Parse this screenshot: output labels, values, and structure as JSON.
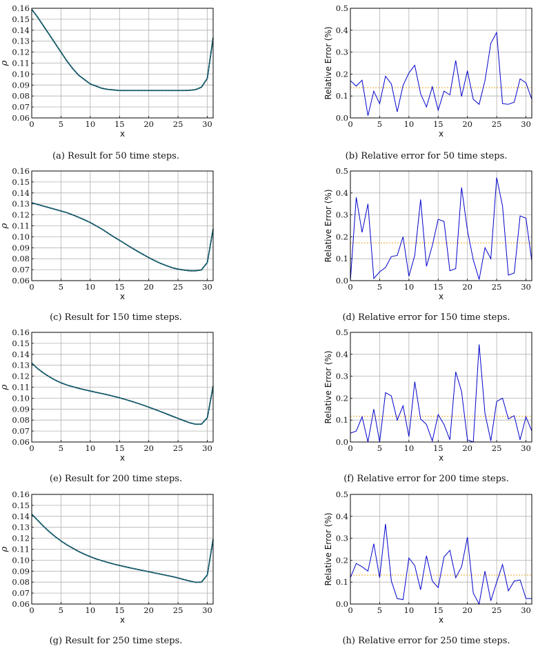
{
  "colors": {
    "accent": "#0000cc",
    "mean": "#e8a317",
    "truth": "#0a4a5a",
    "grid": "#b0b0b0"
  },
  "chart_data": [
    {
      "id": "a",
      "type": "line",
      "caption": "(a) Result for 50 time steps.",
      "xlabel": "x",
      "ylabel": "ρ",
      "xlim": [
        0,
        31
      ],
      "ylim": [
        0.06,
        0.16
      ],
      "xticks": [
        0,
        5,
        10,
        15,
        20,
        25,
        30
      ],
      "yticks": [
        "0.06",
        "0.07",
        "0.08",
        "0.09",
        "0.10",
        "0.11",
        "0.12",
        "0.13",
        "0.14",
        "0.15",
        "0.16"
      ],
      "grid": true,
      "x": [
        0,
        1,
        2,
        3,
        4,
        5,
        6,
        7,
        8,
        9,
        10,
        11,
        12,
        13,
        14,
        15,
        16,
        17,
        18,
        19,
        20,
        21,
        22,
        23,
        24,
        25,
        26,
        27,
        28,
        29,
        30,
        31
      ],
      "series": [
        {
          "values": [
            0.159,
            0.152,
            0.144,
            0.136,
            0.128,
            0.12,
            0.112,
            0.105,
            0.099,
            0.095,
            0.091,
            0.089,
            0.087,
            0.086,
            0.0855,
            0.085,
            0.085,
            0.085,
            0.085,
            0.085,
            0.085,
            0.085,
            0.085,
            0.085,
            0.085,
            0.085,
            0.085,
            0.0852,
            0.0858,
            0.088,
            0.096,
            0.133
          ]
        }
      ]
    },
    {
      "id": "b",
      "type": "line",
      "caption": "(b) Relative error for 50 time steps.",
      "xlabel": "x",
      "ylabel": "Relative Error (%)",
      "xlim": [
        0,
        31
      ],
      "ylim": [
        0,
        0.5
      ],
      "xticks": [
        0,
        5,
        10,
        15,
        20,
        25,
        30
      ],
      "yticks": [
        "0.0",
        "0.1",
        "0.2",
        "0.3",
        "0.4",
        "0.5"
      ],
      "grid": true,
      "mean": 0.138,
      "x": [
        0,
        1,
        2,
        3,
        4,
        5,
        6,
        7,
        8,
        9,
        10,
        11,
        12,
        13,
        14,
        15,
        16,
        17,
        18,
        19,
        20,
        21,
        22,
        23,
        24,
        25,
        26,
        27,
        28,
        29,
        30,
        31
      ],
      "series": [
        {
          "values": [
            0.17,
            0.145,
            0.172,
            0.01,
            0.122,
            0.065,
            0.19,
            0.155,
            0.028,
            0.148,
            0.205,
            0.24,
            0.11,
            0.05,
            0.142,
            0.035,
            0.122,
            0.105,
            0.262,
            0.098,
            0.215,
            0.085,
            0.062,
            0.17,
            0.34,
            0.39,
            0.065,
            0.062,
            0.072,
            0.178,
            0.16,
            0.085
          ]
        }
      ]
    },
    {
      "id": "c",
      "type": "line",
      "caption": "(c) Result for 150 time steps.",
      "xlabel": "x",
      "ylabel": "ρ",
      "xlim": [
        0,
        31
      ],
      "ylim": [
        0.06,
        0.16
      ],
      "xticks": [
        0,
        5,
        10,
        15,
        20,
        25,
        30
      ],
      "yticks": [
        "0.06",
        "0.07",
        "0.08",
        "0.09",
        "0.10",
        "0.11",
        "0.12",
        "0.13",
        "0.14",
        "0.15",
        "0.16"
      ],
      "grid": true,
      "x": [
        0,
        1,
        2,
        3,
        4,
        5,
        6,
        7,
        8,
        9,
        10,
        11,
        12,
        13,
        14,
        15,
        16,
        17,
        18,
        19,
        20,
        21,
        22,
        23,
        24,
        25,
        26,
        27,
        28,
        29,
        30,
        31
      ],
      "series": [
        {
          "values": [
            0.131,
            0.1295,
            0.128,
            0.1265,
            0.125,
            0.1235,
            0.122,
            0.12,
            0.1178,
            0.1155,
            0.113,
            0.11,
            0.107,
            0.1035,
            0.1,
            0.0968,
            0.0935,
            0.0902,
            0.087,
            0.084,
            0.081,
            0.0783,
            0.0758,
            0.0737,
            0.0718,
            0.0705,
            0.0697,
            0.069,
            0.069,
            0.0698,
            0.0765,
            0.107
          ]
        }
      ]
    },
    {
      "id": "d",
      "type": "line",
      "caption": "(d) Relative error for 150 time steps.",
      "xlabel": "x",
      "ylabel": "Relative Error (%)",
      "xlim": [
        0,
        31
      ],
      "ylim": [
        0,
        0.5
      ],
      "xticks": [
        0,
        5,
        10,
        15,
        20,
        25,
        30
      ],
      "yticks": [
        "0.0",
        "0.1",
        "0.2",
        "0.3",
        "0.4",
        "0.5"
      ],
      "grid": true,
      "mean": 0.172,
      "x": [
        0,
        1,
        2,
        3,
        4,
        5,
        6,
        7,
        8,
        9,
        10,
        11,
        12,
        13,
        14,
        15,
        16,
        17,
        18,
        19,
        20,
        21,
        22,
        23,
        24,
        25,
        26,
        27,
        28,
        29,
        30,
        31
      ],
      "series": [
        {
          "values": [
            0.0,
            0.38,
            0.22,
            0.35,
            0.01,
            0.04,
            0.06,
            0.11,
            0.115,
            0.2,
            0.02,
            0.115,
            0.37,
            0.065,
            0.16,
            0.28,
            0.27,
            0.045,
            0.055,
            0.425,
            0.23,
            0.095,
            0.005,
            0.15,
            0.1,
            0.47,
            0.34,
            0.025,
            0.035,
            0.295,
            0.285,
            0.09
          ]
        }
      ]
    },
    {
      "id": "e",
      "type": "line",
      "caption": "(e) Result for 200 time steps.",
      "xlabel": "x",
      "ylabel": "ρ",
      "xlim": [
        0,
        31
      ],
      "ylim": [
        0.06,
        0.16
      ],
      "xticks": [
        0,
        5,
        10,
        15,
        20,
        25,
        30
      ],
      "yticks": [
        "0.06",
        "0.07",
        "0.08",
        "0.09",
        "0.10",
        "0.11",
        "0.12",
        "0.13",
        "0.14",
        "0.15",
        "0.16"
      ],
      "grid": true,
      "x": [
        0,
        1,
        2,
        3,
        4,
        5,
        6,
        7,
        8,
        9,
        10,
        11,
        12,
        13,
        14,
        15,
        16,
        17,
        18,
        19,
        20,
        21,
        22,
        23,
        24,
        25,
        26,
        27,
        28,
        29,
        30,
        31
      ],
      "series": [
        {
          "values": [
            0.132,
            0.127,
            0.123,
            0.1195,
            0.1165,
            0.114,
            0.112,
            0.1105,
            0.109,
            0.1077,
            0.1065,
            0.1053,
            0.1042,
            0.103,
            0.1017,
            0.1003,
            0.0988,
            0.0972,
            0.0955,
            0.0937,
            0.0918,
            0.0898,
            0.0878,
            0.0857,
            0.0836,
            0.0815,
            0.0795,
            0.0775,
            0.0762,
            0.0763,
            0.082,
            0.111
          ]
        }
      ]
    },
    {
      "id": "f",
      "type": "line",
      "caption": "(f) Relative error for 200 time steps.",
      "xlabel": "x",
      "ylabel": "Relative Error (%)",
      "xlim": [
        0,
        31
      ],
      "ylim": [
        0,
        0.5
      ],
      "xticks": [
        0,
        5,
        10,
        15,
        20,
        25,
        30
      ],
      "yticks": [
        "0.0",
        "0.1",
        "0.2",
        "0.3",
        "0.4",
        "0.5"
      ],
      "grid": true,
      "mean": 0.117,
      "x": [
        0,
        1,
        2,
        3,
        4,
        5,
        6,
        7,
        8,
        9,
        10,
        11,
        12,
        13,
        14,
        15,
        16,
        17,
        18,
        19,
        20,
        21,
        22,
        23,
        24,
        25,
        26,
        27,
        28,
        29,
        30,
        31
      ],
      "series": [
        {
          "values": [
            0.04,
            0.05,
            0.115,
            0.0,
            0.15,
            0.0,
            0.225,
            0.21,
            0.1,
            0.165,
            0.025,
            0.275,
            0.105,
            0.08,
            0.005,
            0.125,
            0.08,
            0.01,
            0.32,
            0.23,
            0.01,
            0.0,
            0.445,
            0.13,
            0.005,
            0.185,
            0.2,
            0.105,
            0.12,
            0.01,
            0.115,
            0.05
          ]
        }
      ]
    },
    {
      "id": "g",
      "type": "line",
      "caption": "(g) Result for 250 time steps.",
      "xlabel": "x",
      "ylabel": "ρ",
      "xlim": [
        0,
        31
      ],
      "ylim": [
        0.06,
        0.16
      ],
      "xticks": [
        0,
        5,
        10,
        15,
        20,
        25,
        30
      ],
      "yticks": [
        "0.06",
        "0.07",
        "0.08",
        "0.09",
        "0.10",
        "0.11",
        "0.12",
        "0.13",
        "0.14",
        "0.15",
        "0.16"
      ],
      "grid": true,
      "x": [
        0,
        1,
        2,
        3,
        4,
        5,
        6,
        7,
        8,
        9,
        10,
        11,
        12,
        13,
        14,
        15,
        16,
        17,
        18,
        19,
        20,
        21,
        22,
        23,
        24,
        25,
        26,
        27,
        28,
        29,
        30,
        31
      ],
      "series": [
        {
          "values": [
            0.142,
            0.1365,
            0.131,
            0.126,
            0.1215,
            0.1175,
            0.114,
            0.111,
            0.108,
            0.1055,
            0.1032,
            0.1012,
            0.0995,
            0.098,
            0.0965,
            0.0952,
            0.094,
            0.0928,
            0.0917,
            0.0906,
            0.0895,
            0.0884,
            0.0873,
            0.0862,
            0.0851,
            0.0838,
            0.0823,
            0.081,
            0.0798,
            0.08,
            0.0865,
            0.119
          ]
        }
      ]
    },
    {
      "id": "h",
      "type": "line",
      "caption": "(h) Relative error for 250 time steps.",
      "xlabel": "x",
      "ylabel": "Relative Error (%)",
      "xlim": [
        0,
        31
      ],
      "ylim": [
        0,
        0.5
      ],
      "xticks": [
        0,
        5,
        10,
        15,
        20,
        25,
        30
      ],
      "yticks": [
        "0.0",
        "0.1",
        "0.2",
        "0.3",
        "0.4",
        "0.5"
      ],
      "grid": true,
      "mean": 0.132,
      "x": [
        0,
        1,
        2,
        3,
        4,
        5,
        6,
        7,
        8,
        9,
        10,
        11,
        12,
        13,
        14,
        15,
        16,
        17,
        18,
        19,
        20,
        21,
        22,
        23,
        24,
        25,
        26,
        27,
        28,
        29,
        30,
        31
      ],
      "series": [
        {
          "values": [
            0.12,
            0.185,
            0.17,
            0.15,
            0.275,
            0.12,
            0.365,
            0.105,
            0.025,
            0.02,
            0.21,
            0.175,
            0.065,
            0.22,
            0.105,
            0.075,
            0.215,
            0.245,
            0.12,
            0.17,
            0.305,
            0.05,
            0.0,
            0.15,
            0.015,
            0.1,
            0.18,
            0.06,
            0.105,
            0.11,
            0.025,
            0.025
          ]
        }
      ]
    }
  ]
}
